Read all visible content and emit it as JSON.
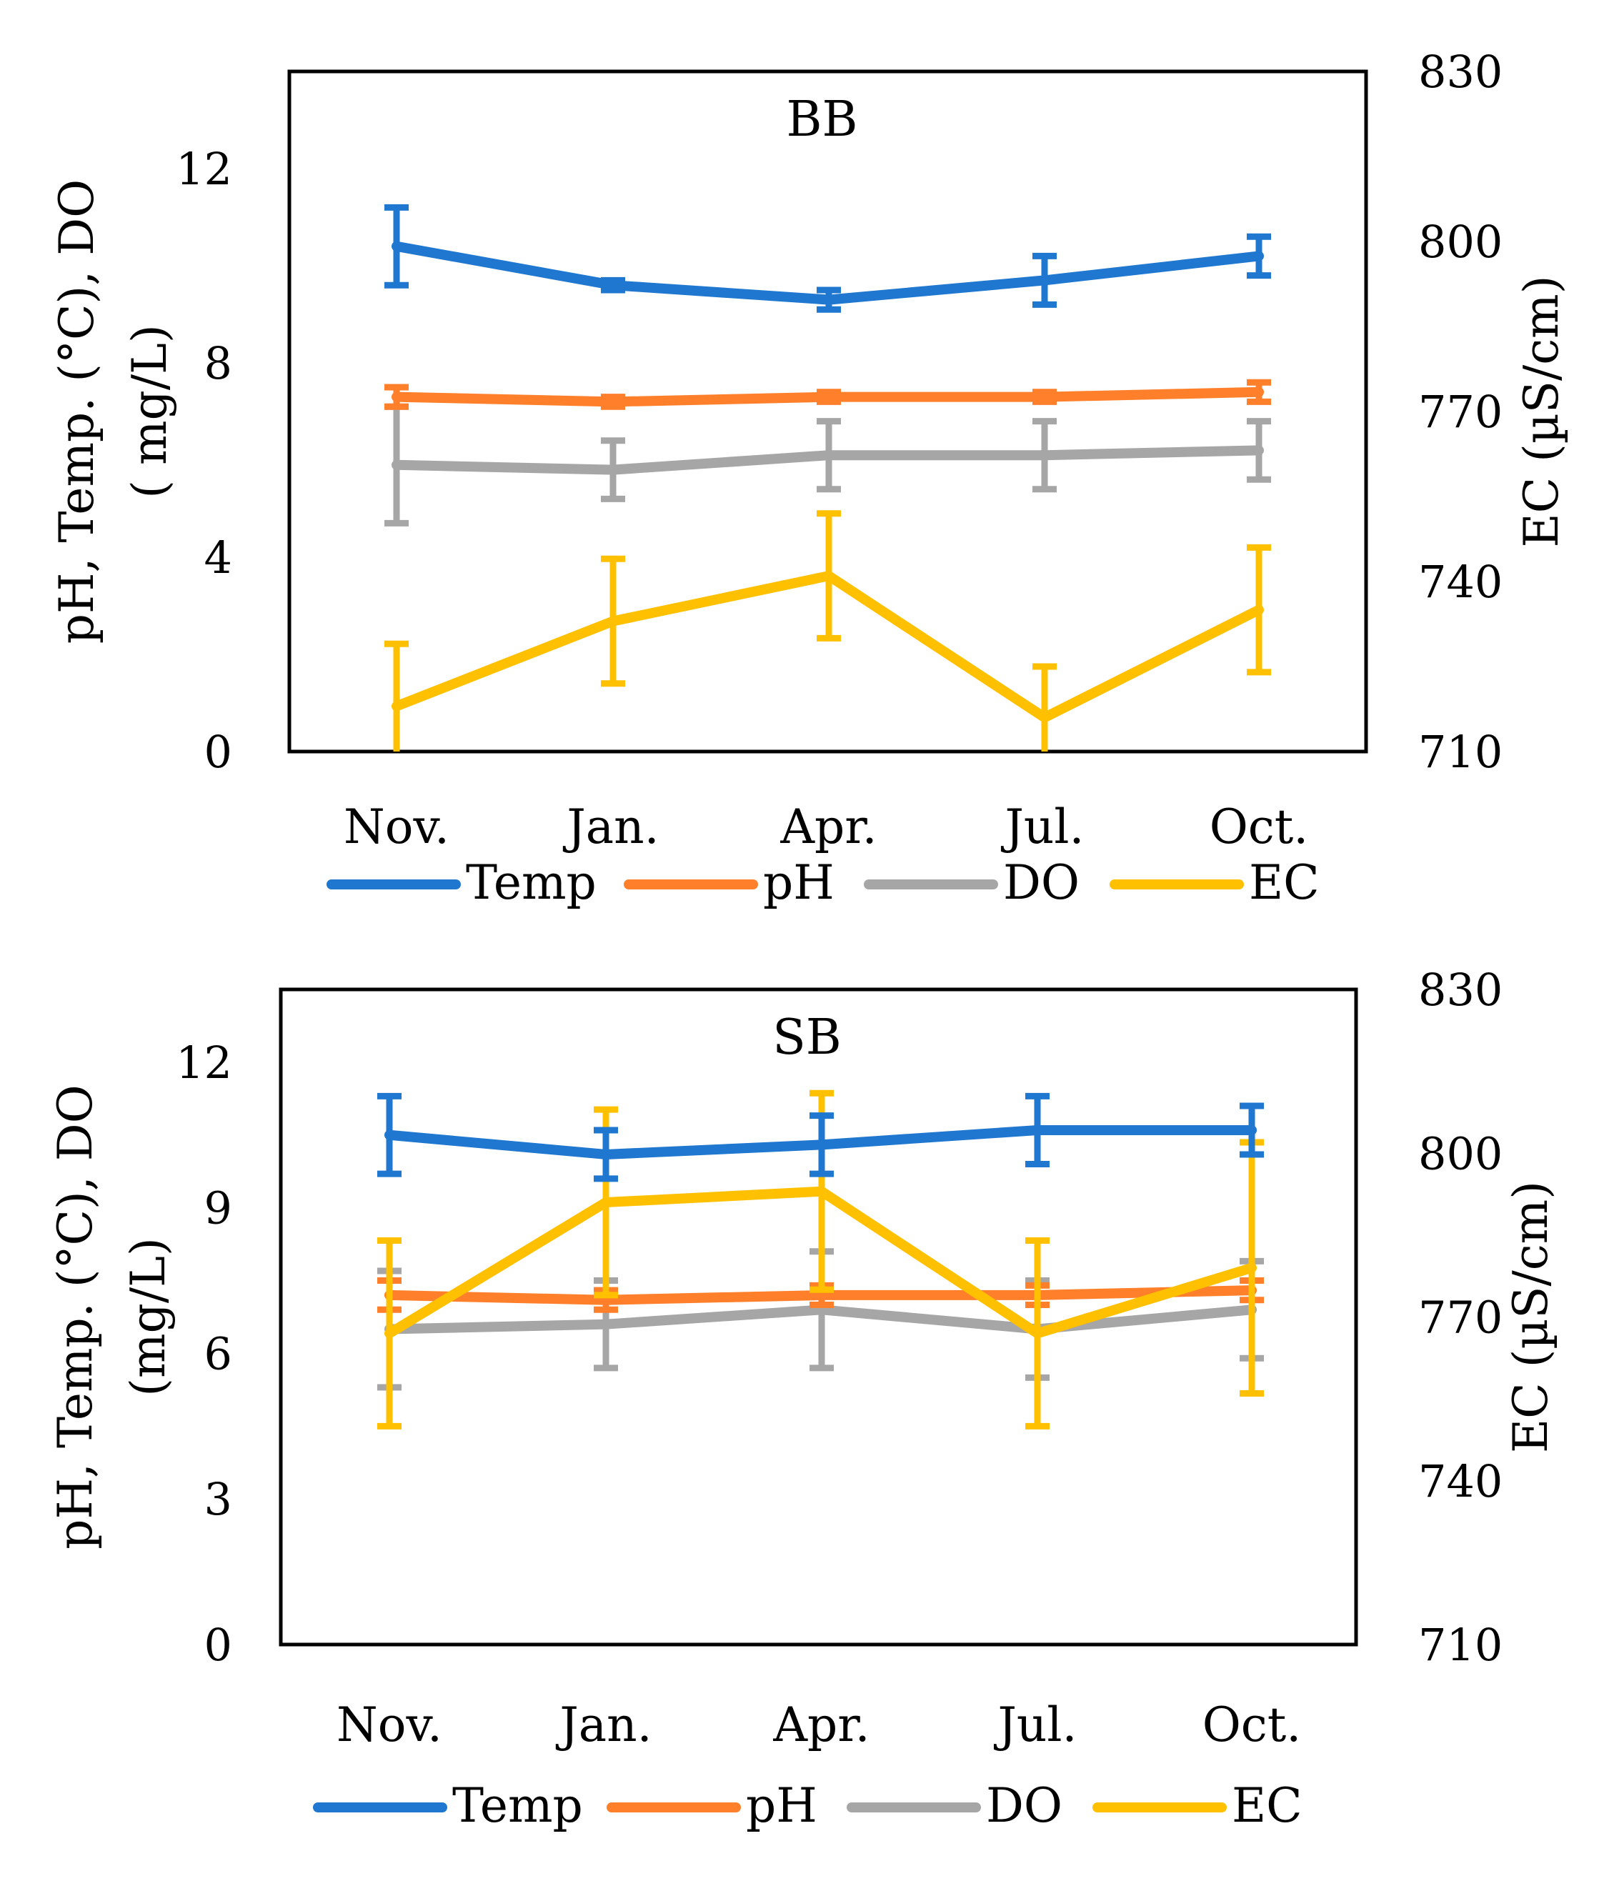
{
  "colors": {
    "Temp": "#1f77d0",
    "pH": "#ff7f2a",
    "DO": "#a6a6a6",
    "EC": "#ffc000",
    "axis": "#000000"
  },
  "chart_data": [
    {
      "type": "line",
      "title": "BB",
      "categories": [
        "Nov.",
        "Jan.",
        "Apr.",
        "Jul.",
        "Oct."
      ],
      "ylabel": "pH, Temp. (°C), DO ( mg/L)",
      "ylabel_lines": [
        "pH, Temp. (°C), DO",
        "( mg/L)"
      ],
      "y2label": "EC (µS/cm)",
      "ylim": [
        0,
        14
      ],
      "yticks": [
        0,
        4,
        8,
        12
      ],
      "ytick_labels": [
        "0",
        "4",
        "8",
        "12"
      ],
      "y2lim": [
        710,
        830
      ],
      "y2ticks": [
        710,
        740,
        770,
        800,
        830
      ],
      "y2tick_labels": [
        "710",
        "740",
        "770",
        "800",
        "830"
      ],
      "series": [
        {
          "name": "Temp",
          "axis": "left",
          "values": [
            10.4,
            9.6,
            9.3,
            9.7,
            10.2
          ],
          "errors": [
            0.8,
            0.1,
            0.2,
            0.5,
            0.4
          ]
        },
        {
          "name": "pH",
          "axis": "left",
          "values": [
            7.3,
            7.2,
            7.3,
            7.3,
            7.4
          ],
          "errors": [
            0.2,
            0.1,
            0.1,
            0.1,
            0.2
          ]
        },
        {
          "name": "DO",
          "axis": "left",
          "values": [
            5.9,
            5.8,
            6.1,
            6.1,
            6.2
          ],
          "errors": [
            1.2,
            0.6,
            0.7,
            0.7,
            0.6
          ]
        },
        {
          "name": "EC",
          "axis": "right",
          "values": [
            718,
            733,
            741,
            716,
            735
          ],
          "errors": [
            11,
            11,
            11,
            9,
            11
          ]
        }
      ],
      "legend": [
        "Temp",
        "pH",
        "DO",
        "EC"
      ],
      "legend_position": "bottom"
    },
    {
      "type": "line",
      "title": "SB",
      "categories": [
        "Nov.",
        "Jan.",
        "Apr.",
        "Jul.",
        "Oct."
      ],
      "ylabel": "pH, Temp. (°C), DO (mg/L)",
      "ylabel_lines": [
        "pH, Temp. (°C), DO",
        "(mg/L)"
      ],
      "y2label": "EC (µS/cm)",
      "ylim": [
        0,
        13.5
      ],
      "yticks": [
        0,
        3,
        6,
        9,
        12
      ],
      "ytick_labels": [
        "0",
        "3",
        "6",
        "9",
        "12"
      ],
      "y2lim": [
        710,
        830
      ],
      "y2ticks": [
        710,
        740,
        770,
        800,
        830
      ],
      "y2tick_labels": [
        "710",
        "740",
        "770",
        "800",
        "830"
      ],
      "series": [
        {
          "name": "Temp",
          "axis": "left",
          "values": [
            10.5,
            10.1,
            10.3,
            10.6,
            10.6
          ],
          "errors": [
            0.8,
            0.5,
            0.6,
            0.7,
            0.5
          ]
        },
        {
          "name": "pH",
          "axis": "left",
          "values": [
            7.2,
            7.1,
            7.2,
            7.2,
            7.3
          ],
          "errors": [
            0.3,
            0.2,
            0.2,
            0.2,
            0.2
          ]
        },
        {
          "name": "DO",
          "axis": "left",
          "values": [
            6.5,
            6.6,
            6.9,
            6.5,
            6.9
          ],
          "errors": [
            1.2,
            0.9,
            1.2,
            1.0,
            1.0
          ]
        },
        {
          "name": "EC",
          "axis": "right",
          "values": [
            767,
            791,
            793,
            767,
            779
          ],
          "errors": [
            17,
            17,
            18,
            17,
            23
          ]
        }
      ],
      "legend": [
        "Temp",
        "pH",
        "DO",
        "EC"
      ],
      "legend_position": "bottom"
    }
  ]
}
